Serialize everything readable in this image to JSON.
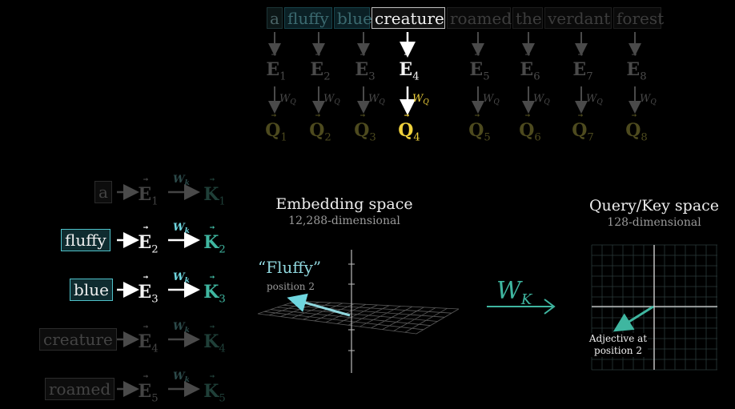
{
  "tokens": [
    {
      "text": "a",
      "sub": "1",
      "state": "dim-teal"
    },
    {
      "text": "fluffy",
      "sub": "2",
      "state": "teal"
    },
    {
      "text": "blue",
      "sub": "3",
      "state": "teal"
    },
    {
      "text": "creature",
      "sub": "4",
      "state": "active"
    },
    {
      "text": "roamed",
      "sub": "5",
      "state": "dim"
    },
    {
      "text": "the",
      "sub": "6",
      "state": "dim"
    },
    {
      "text": "verdant",
      "sub": "7",
      "state": "dim"
    },
    {
      "text": "forest",
      "sub": "8",
      "state": "dim"
    }
  ],
  "symbols": {
    "embedding": "E",
    "query": "Q",
    "key": "K",
    "wq": "W",
    "wq_sub": "Q",
    "wk": "W",
    "wk_sub": "k"
  },
  "key_rows": [
    {
      "word": "a",
      "sub": "1",
      "state": "faint"
    },
    {
      "word": "fluffy",
      "sub": "2",
      "state": "active"
    },
    {
      "word": "blue",
      "sub": "3",
      "state": "active"
    },
    {
      "word": "creature",
      "sub": "4",
      "state": "faint"
    },
    {
      "word": "roamed",
      "sub": "5",
      "state": "faint"
    }
  ],
  "embedding_space": {
    "title": "Embedding space",
    "subtitle": "12,288-dimensional",
    "vector_label": "“Fluffy”",
    "vector_sublabel": "position 2"
  },
  "transform": {
    "label": "W",
    "label_sub": "K"
  },
  "query_key_space": {
    "title": "Query/Key space",
    "subtitle": "128-dimensional",
    "vector_label_line1": "Adjective at",
    "vector_label_line2": "position 2"
  },
  "colors": {
    "teal": "#4fc1c9",
    "query_yellow": "#f0d23c",
    "key_teal": "#3fb6a0",
    "background": "#000000"
  }
}
